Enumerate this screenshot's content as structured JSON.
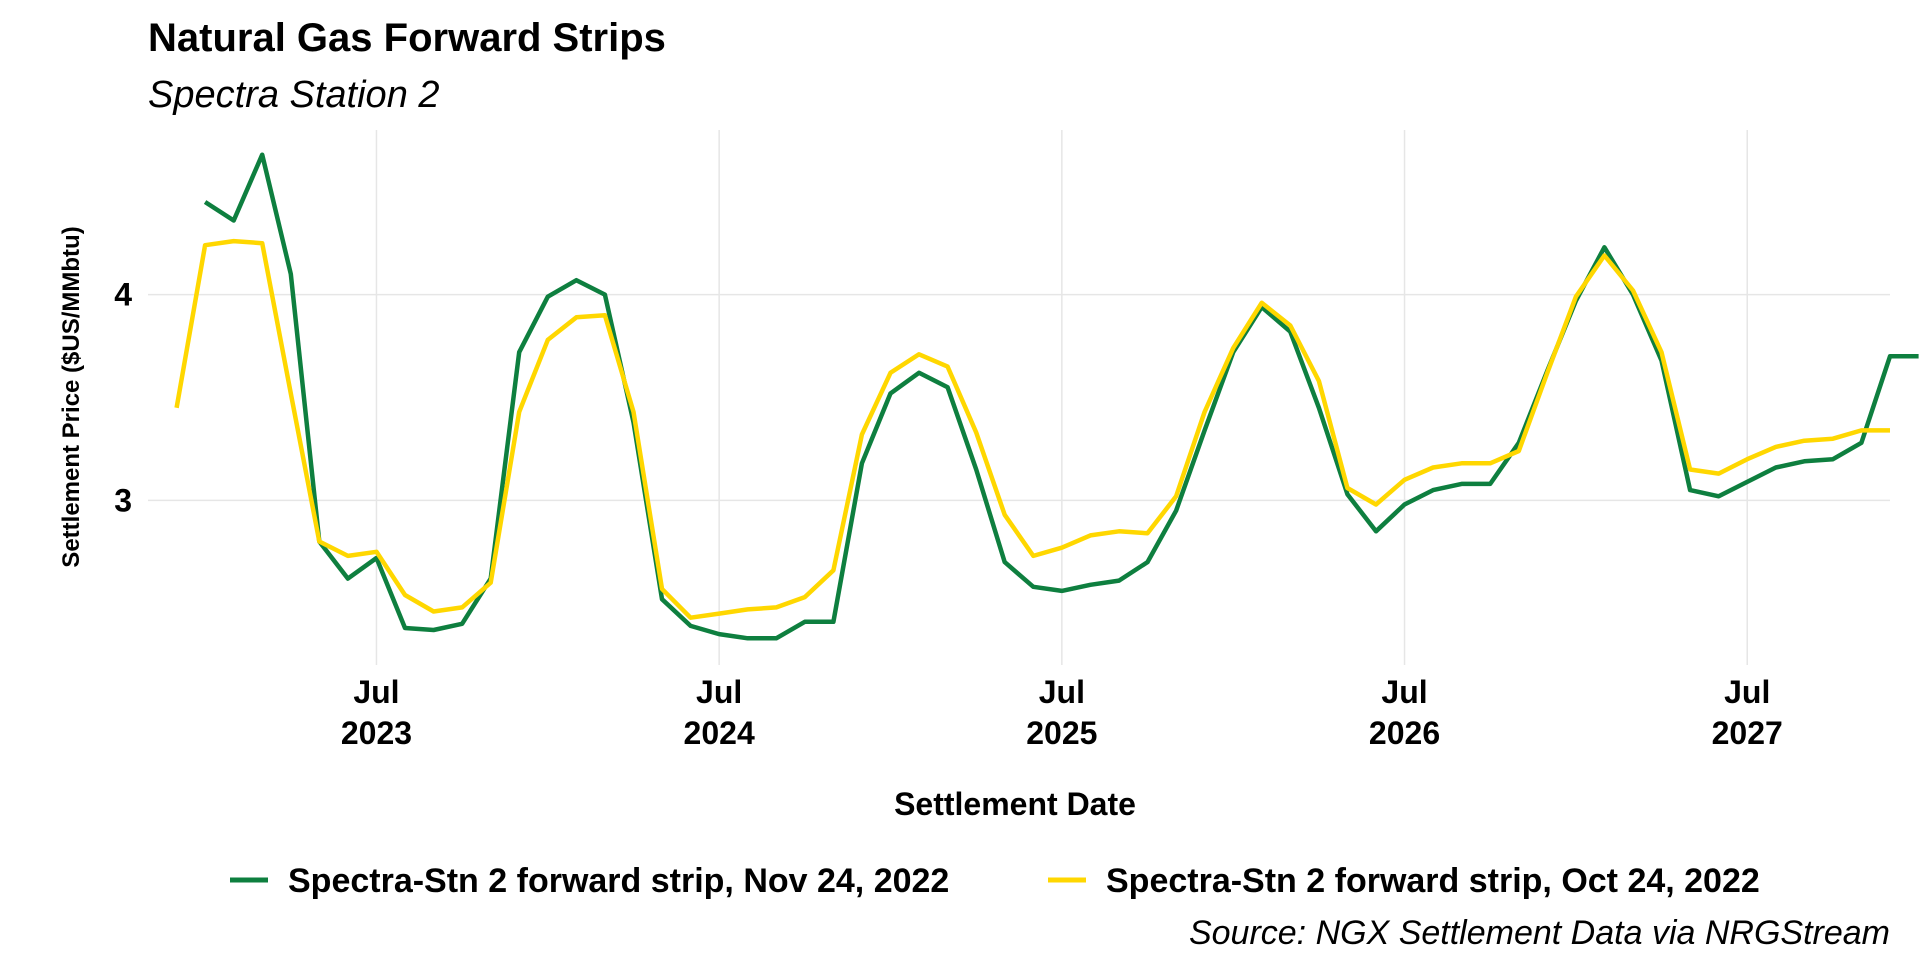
{
  "chart_data": {
    "type": "line",
    "title": "Natural Gas Forward Strips",
    "subtitle": "Spectra Station 2",
    "xlabel": "Settlement Date",
    "ylabel": "Settlement Price ($US/MMbtu)",
    "caption": "Source: NGX Settlement Data via NRGStream",
    "x_ticks": [
      {
        "date": "2023-07",
        "month": "Jul",
        "year": "2023"
      },
      {
        "date": "2024-07",
        "month": "Jul",
        "year": "2024"
      },
      {
        "date": "2025-07",
        "month": "Jul",
        "year": "2025"
      },
      {
        "date": "2026-07",
        "month": "Jul",
        "year": "2026"
      },
      {
        "date": "2027-07",
        "month": "Jul",
        "year": "2027"
      }
    ],
    "y_ticks": [
      3,
      4
    ],
    "xlim": [
      "2022-11",
      "2027-12"
    ],
    "ylim": [
      2.2,
      4.8
    ],
    "grid": true,
    "legend_position": "bottom",
    "series": [
      {
        "name": "Spectra-Stn 2 forward strip, Nov 24, 2022",
        "color": "#0e7f3f",
        "start": "2023-01",
        "values": [
          4.45,
          4.36,
          4.68,
          4.1,
          2.8,
          2.62,
          2.72,
          2.38,
          2.37,
          2.4,
          2.62,
          3.72,
          3.99,
          4.07,
          4.0,
          3.38,
          2.52,
          2.39,
          2.35,
          2.33,
          2.33,
          2.41,
          2.41,
          3.18,
          3.52,
          3.62,
          3.55,
          3.15,
          2.7,
          2.58,
          2.56,
          2.59,
          2.61,
          2.7,
          2.95,
          3.34,
          3.72,
          3.94,
          3.82,
          3.45,
          3.03,
          2.85,
          2.98,
          3.05,
          3.08,
          3.08,
          3.28,
          3.63,
          3.97,
          4.23,
          4.0,
          3.68,
          3.05,
          3.02,
          3.09,
          3.16,
          3.19,
          3.2,
          3.28,
          3.7,
          3.7
        ]
      },
      {
        "name": "Spectra-Stn 2 forward strip, Oct 24, 2022",
        "color": "#ffd700",
        "start": "2022-12",
        "values": [
          3.45,
          4.24,
          4.26,
          4.25,
          3.52,
          2.8,
          2.73,
          2.75,
          2.54,
          2.46,
          2.48,
          2.6,
          3.43,
          3.78,
          3.89,
          3.9,
          3.43,
          2.57,
          2.43,
          2.45,
          2.47,
          2.48,
          2.53,
          2.66,
          3.32,
          3.62,
          3.71,
          3.65,
          3.33,
          2.93,
          2.73,
          2.77,
          2.83,
          2.85,
          2.84,
          3.02,
          3.43,
          3.74,
          3.96,
          3.85,
          3.58,
          3.06,
          2.98,
          3.1,
          3.16,
          3.18,
          3.18,
          3.24,
          3.62,
          3.99,
          4.19,
          4.02,
          3.72,
          3.15,
          3.13,
          3.2,
          3.26,
          3.29,
          3.3,
          3.34,
          3.34
        ]
      }
    ]
  }
}
